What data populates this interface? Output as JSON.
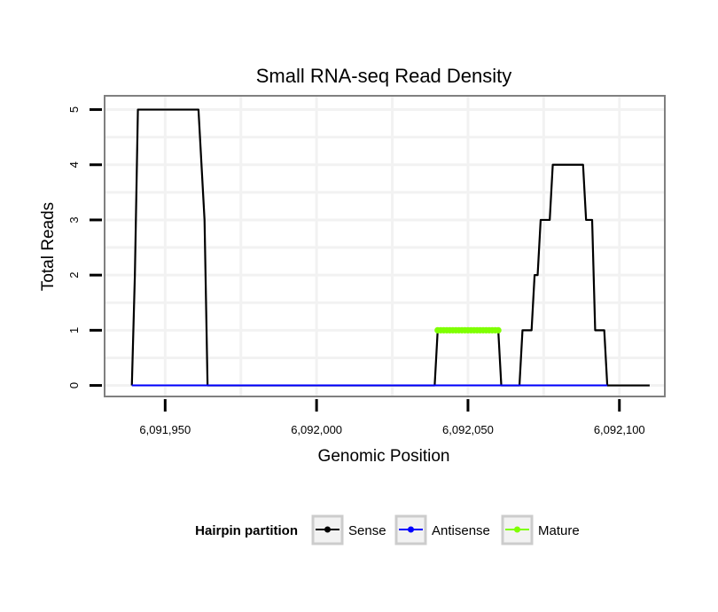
{
  "chart_data": {
    "type": "line",
    "title": "Small RNA-seq Read Density",
    "xlabel": "Genomic Position",
    "ylabel": "Total Reads",
    "xlim": [
      6091930,
      6092115
    ],
    "ylim": [
      -0.2,
      5.25
    ],
    "grid": true,
    "x_ticks": [
      6091950,
      6092000,
      6092050,
      6092100
    ],
    "x_tick_labels": [
      "6,091,950",
      "6,092,000",
      "6,092,050",
      "6,092,100"
    ],
    "y_ticks": [
      0,
      1,
      2,
      3,
      4,
      5
    ],
    "y_tick_labels": [
      "0",
      "1",
      "2",
      "3",
      "4",
      "5"
    ],
    "legend": {
      "title": "Hairpin partition",
      "position": "bottom",
      "entries": [
        {
          "label": "Sense",
          "color": "#000000"
        },
        {
          "label": "Antisense",
          "color": "#0000ff"
        },
        {
          "label": "Mature",
          "color": "#7fff00"
        }
      ]
    },
    "series": [
      {
        "name": "Sense",
        "color": "#000000",
        "points": [
          [
            6091939,
            0
          ],
          [
            6091940,
            2
          ],
          [
            6091941,
            5
          ],
          [
            6091961,
            5
          ],
          [
            6091963,
            3
          ],
          [
            6091964,
            0
          ],
          [
            6092039,
            0
          ],
          [
            6092040,
            1
          ],
          [
            6092060,
            1
          ],
          [
            6092061,
            0
          ],
          [
            6092067,
            0
          ],
          [
            6092068,
            1
          ],
          [
            6092071,
            1
          ],
          [
            6092072,
            2
          ],
          [
            6092073,
            2
          ],
          [
            6092074,
            3
          ],
          [
            6092077,
            3
          ],
          [
            6092078,
            4
          ],
          [
            6092088,
            4
          ],
          [
            6092089,
            3
          ],
          [
            6092091,
            3
          ],
          [
            6092092,
            1
          ],
          [
            6092095,
            1
          ],
          [
            6092096,
            0
          ],
          [
            6092110,
            0
          ]
        ]
      },
      {
        "name": "Antisense",
        "color": "#0000ff",
        "points": [
          [
            6091939,
            0
          ],
          [
            6092096,
            0
          ]
        ]
      },
      {
        "name": "Mature",
        "color": "#7fff00",
        "points": [
          [
            6092040,
            1
          ],
          [
            6092041,
            1
          ],
          [
            6092042,
            1
          ],
          [
            6092043,
            1
          ],
          [
            6092044,
            1
          ],
          [
            6092045,
            1
          ],
          [
            6092046,
            1
          ],
          [
            6092047,
            1
          ],
          [
            6092048,
            1
          ],
          [
            6092049,
            1
          ],
          [
            6092050,
            1
          ],
          [
            6092051,
            1
          ],
          [
            6092052,
            1
          ],
          [
            6092053,
            1
          ],
          [
            6092054,
            1
          ],
          [
            6092055,
            1
          ],
          [
            6092056,
            1
          ],
          [
            6092057,
            1
          ],
          [
            6092058,
            1
          ],
          [
            6092059,
            1
          ],
          [
            6092060,
            1
          ]
        ]
      }
    ]
  }
}
